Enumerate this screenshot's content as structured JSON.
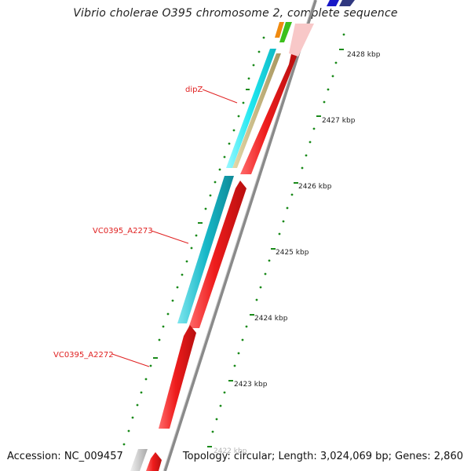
{
  "title": "Vibrio cholerae O395 chromosome 2, complete sequence",
  "footer": {
    "accession": "Accession: NC_009457",
    "topology": "Topology: circular; Length: 3,024,069 bp; Genes: 2,860"
  },
  "colors": {
    "forward_strand": "#ee1c1c",
    "axis": "#8a8a8a",
    "tick": "#1a8a1a",
    "label": "#e02020",
    "cyan": "#1ee7f0",
    "teal": "#18b8c8",
    "tan": "#c0b07a",
    "green": "#3cc01c",
    "orange": "#f08a10",
    "blue": "#1818c8",
    "navy": "#303880",
    "grey": "#c8c8c8"
  },
  "scale_labels": [
    "2428 kbp",
    "2427 kbp",
    "2426 kbp",
    "2425 kbp",
    "2424 kbp",
    "2423 kbp",
    "2422 kbp"
  ],
  "gene_labels": [
    {
      "name": "dipZ"
    },
    {
      "name": "VC0395_A2273"
    },
    {
      "name": "VC0395_A2272"
    }
  ]
}
